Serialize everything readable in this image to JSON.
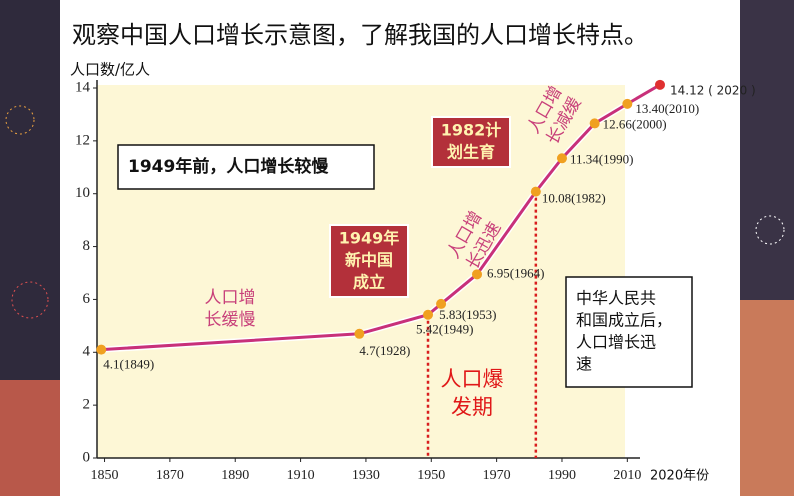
{
  "chart_data": {
    "type": "line",
    "title": "观察中国人口增长示意图，了解我国的人口增长特点。",
    "y_label": "人口数/亿人",
    "x_label": "2020年份",
    "x": [
      1849,
      1928,
      1949,
      1953,
      1964,
      1982,
      1990,
      2000,
      2010,
      2020
    ],
    "series": [
      {
        "color": "#c8307a",
        "values": [
          4.1,
          4.7,
          5.42,
          5.83,
          6.95,
          10.08,
          11.34,
          12.66,
          13.4,
          14.12
        ],
        "value_labels": [
          "4.1(1849)",
          "4.7(1928)",
          "5.42(1949)",
          "5.83(1953)",
          "6.95(1964)",
          "10.08(1982)",
          "11.34(1990)",
          "12.66(2000)",
          "13.40(2010)",
          "14.12 ( 2020 )"
        ]
      }
    ],
    "point_color": "#f0a020",
    "xlim": [
      1848,
      2020
    ],
    "ylim": [
      0,
      14
    ],
    "xticks": [
      1850,
      1870,
      1890,
      1910,
      1930,
      1950,
      1970,
      1990,
      2010
    ],
    "yticks": [
      0,
      2,
      4,
      6,
      8,
      10,
      12,
      14
    ],
    "annotations": [
      {
        "lines": [
          "1949年前，人口增长较慢"
        ]
      },
      {
        "lines": [
          "1949年",
          "新中国",
          "成立"
        ]
      },
      {
        "lines": [
          "1982计",
          "划生育"
        ]
      },
      {
        "lines": [
          "人口增",
          "长缓慢"
        ]
      },
      {
        "lines": [
          "人口增",
          "长迅速"
        ]
      },
      {
        "lines": [
          "人口增",
          "长减缓"
        ]
      },
      {
        "lines": [
          "人口爆",
          "发期"
        ]
      },
      {
        "lines": [
          "中华人民共",
          "和国成立后，",
          "人口增长迅",
          "速"
        ]
      }
    ]
  }
}
